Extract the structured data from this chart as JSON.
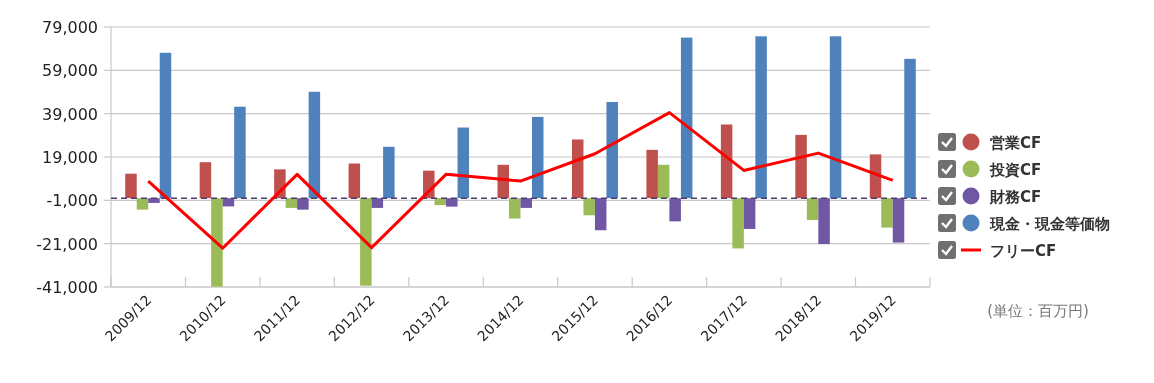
{
  "chart_data": {
    "type": "bar",
    "categories": [
      "2009/12",
      "2010/12",
      "2011/12",
      "2012/12",
      "2013/12",
      "2014/12",
      "2015/12",
      "2016/12",
      "2017/12",
      "2018/12",
      "2019/12"
    ],
    "series": [
      {
        "name": "営業CF",
        "color": "#c0504d",
        "values": [
          11300,
          16600,
          13300,
          16000,
          12700,
          15400,
          27100,
          22300,
          34000,
          29200,
          20200
        ]
      },
      {
        "name": "投資CF",
        "color": "#9bbb59",
        "values": [
          -5300,
          -40800,
          -4500,
          -40400,
          -3200,
          -9400,
          -7900,
          15400,
          -23200,
          -10100,
          -13600
        ]
      },
      {
        "name": "財務CF",
        "color": "#6f57a3",
        "values": [
          -2200,
          -3800,
          -5300,
          -4500,
          -3900,
          -4500,
          -14800,
          -10700,
          -14200,
          -21200,
          -20500
        ]
      },
      {
        "name": "現金・現金等価物",
        "color": "#4f81bd",
        "values": [
          67100,
          42200,
          49100,
          23700,
          32600,
          37500,
          44400,
          74100,
          74700,
          74700,
          64300
        ]
      },
      {
        "name": "フリーCF",
        "type": "line",
        "color": "#ff0000",
        "values": [
          7900,
          -23100,
          11000,
          -22800,
          11000,
          7900,
          20500,
          39500,
          12800,
          20800,
          8200
        ]
      }
    ],
    "ylim": [
      -41000,
      79000
    ],
    "yticks": [
      {
        "value": -41000,
        "label": "-41,000"
      },
      {
        "value": -21000,
        "label": "-21,000"
      },
      {
        "value": -1000,
        "label": "-1,000"
      },
      {
        "value": 19000,
        "label": "19,000"
      },
      {
        "value": 39000,
        "label": "39,000"
      },
      {
        "value": 59000,
        "label": "59,000"
      },
      {
        "value": 79000,
        "label": "79,000"
      }
    ],
    "ref_lines": [
      {
        "axis": "y",
        "value": 0,
        "color": "#4b3d6e",
        "line_style": "dashed"
      }
    ],
    "grid": "y",
    "legend": "right",
    "annotations": [
      "(単位：百万円)"
    ]
  }
}
